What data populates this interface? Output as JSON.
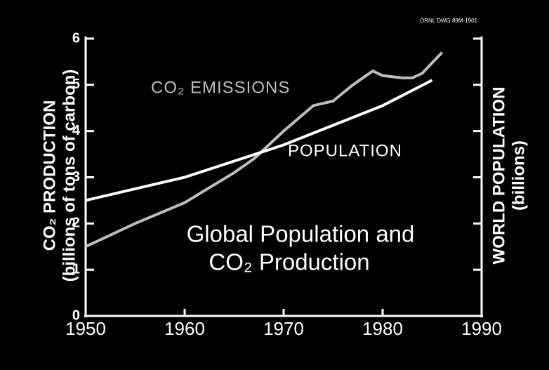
{
  "chart_data": {
    "type": "line",
    "title": [
      "Global Population and",
      "CO₂ Production"
    ],
    "ylabel": [
      "CO₂ PRODUCTION",
      "(billions of tons of carbon)"
    ],
    "y2label": [
      "WORLD POPULATION",
      "(billions)"
    ],
    "note": "ORNL DWG 89M-1901",
    "xlim": [
      1950,
      1990
    ],
    "xticks": [
      1950,
      1960,
      1970,
      1980,
      1990
    ],
    "ylim": [
      0,
      6
    ],
    "yticks": [
      0,
      1,
      2,
      3,
      4,
      5,
      6
    ],
    "y2lim": [
      0,
      6
    ],
    "y2ticks": [
      0,
      1,
      2,
      3,
      4,
      5,
      6
    ],
    "series": [
      {
        "name": "CO₂ EMISSIONS",
        "color": "#bdbdbd",
        "x": [
          1950,
          1955,
          1960,
          1965,
          1967,
          1970,
          1973,
          1975,
          1977,
          1979,
          1980,
          1982,
          1983,
          1984,
          1986
        ],
        "values": [
          1.5,
          2.0,
          2.45,
          3.1,
          3.4,
          4.0,
          4.55,
          4.65,
          5.0,
          5.3,
          5.2,
          5.15,
          5.15,
          5.25,
          5.7
        ]
      },
      {
        "name": "POPULATION",
        "color": "#ffffff",
        "axis": "y2",
        "x": [
          1950,
          1960,
          1970,
          1980,
          1985
        ],
        "values": [
          2.5,
          3.0,
          3.7,
          4.55,
          5.1
        ]
      }
    ]
  }
}
